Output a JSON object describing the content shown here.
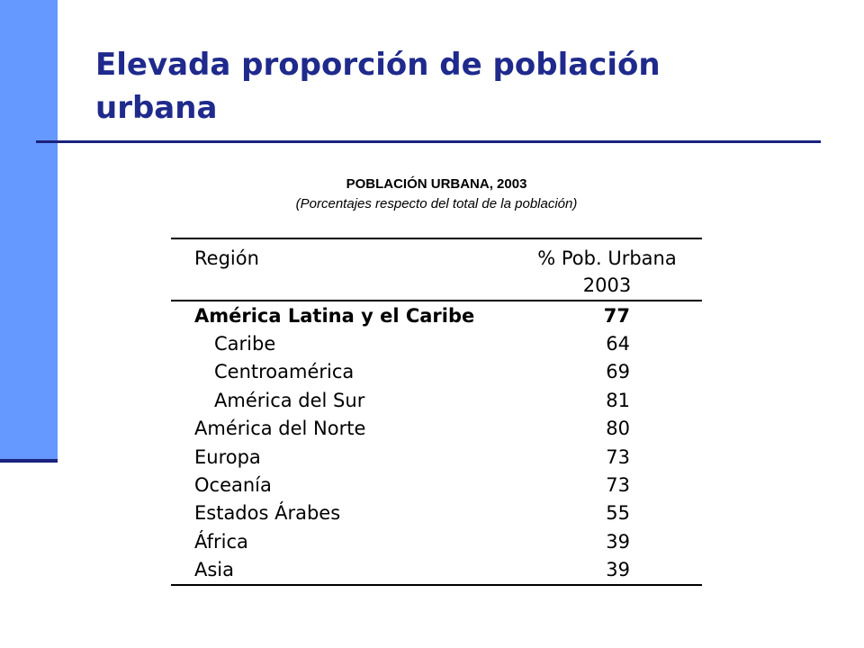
{
  "slide": {
    "title": "Elevada proporción de población urbana"
  },
  "table": {
    "heading": "POBLACIÓN URBANA, 2003",
    "subheading": "(Porcentajes respecto del total de la población)",
    "columns": {
      "region": "Región",
      "value_line1": "% Pob. Urbana",
      "value_line2": "2003"
    },
    "rows": [
      {
        "region": "América Latina y el Caribe",
        "value": "77"
      },
      {
        "region": "Caribe",
        "value": "64"
      },
      {
        "region": "Centroamérica",
        "value": "69"
      },
      {
        "region": "América del Sur",
        "value": "81"
      },
      {
        "region": "América del Norte",
        "value": "80"
      },
      {
        "region": "Europa",
        "value": "73"
      },
      {
        "region": "Oceanía",
        "value": "73"
      },
      {
        "region": "Estados Árabes",
        "value": "55"
      },
      {
        "region": "África",
        "value": "39"
      },
      {
        "region": "Asia",
        "value": "39"
      }
    ]
  },
  "colors": {
    "side_bar": "#6699ff",
    "title_text": "#1f2a8c",
    "rule": "#1a237e"
  }
}
